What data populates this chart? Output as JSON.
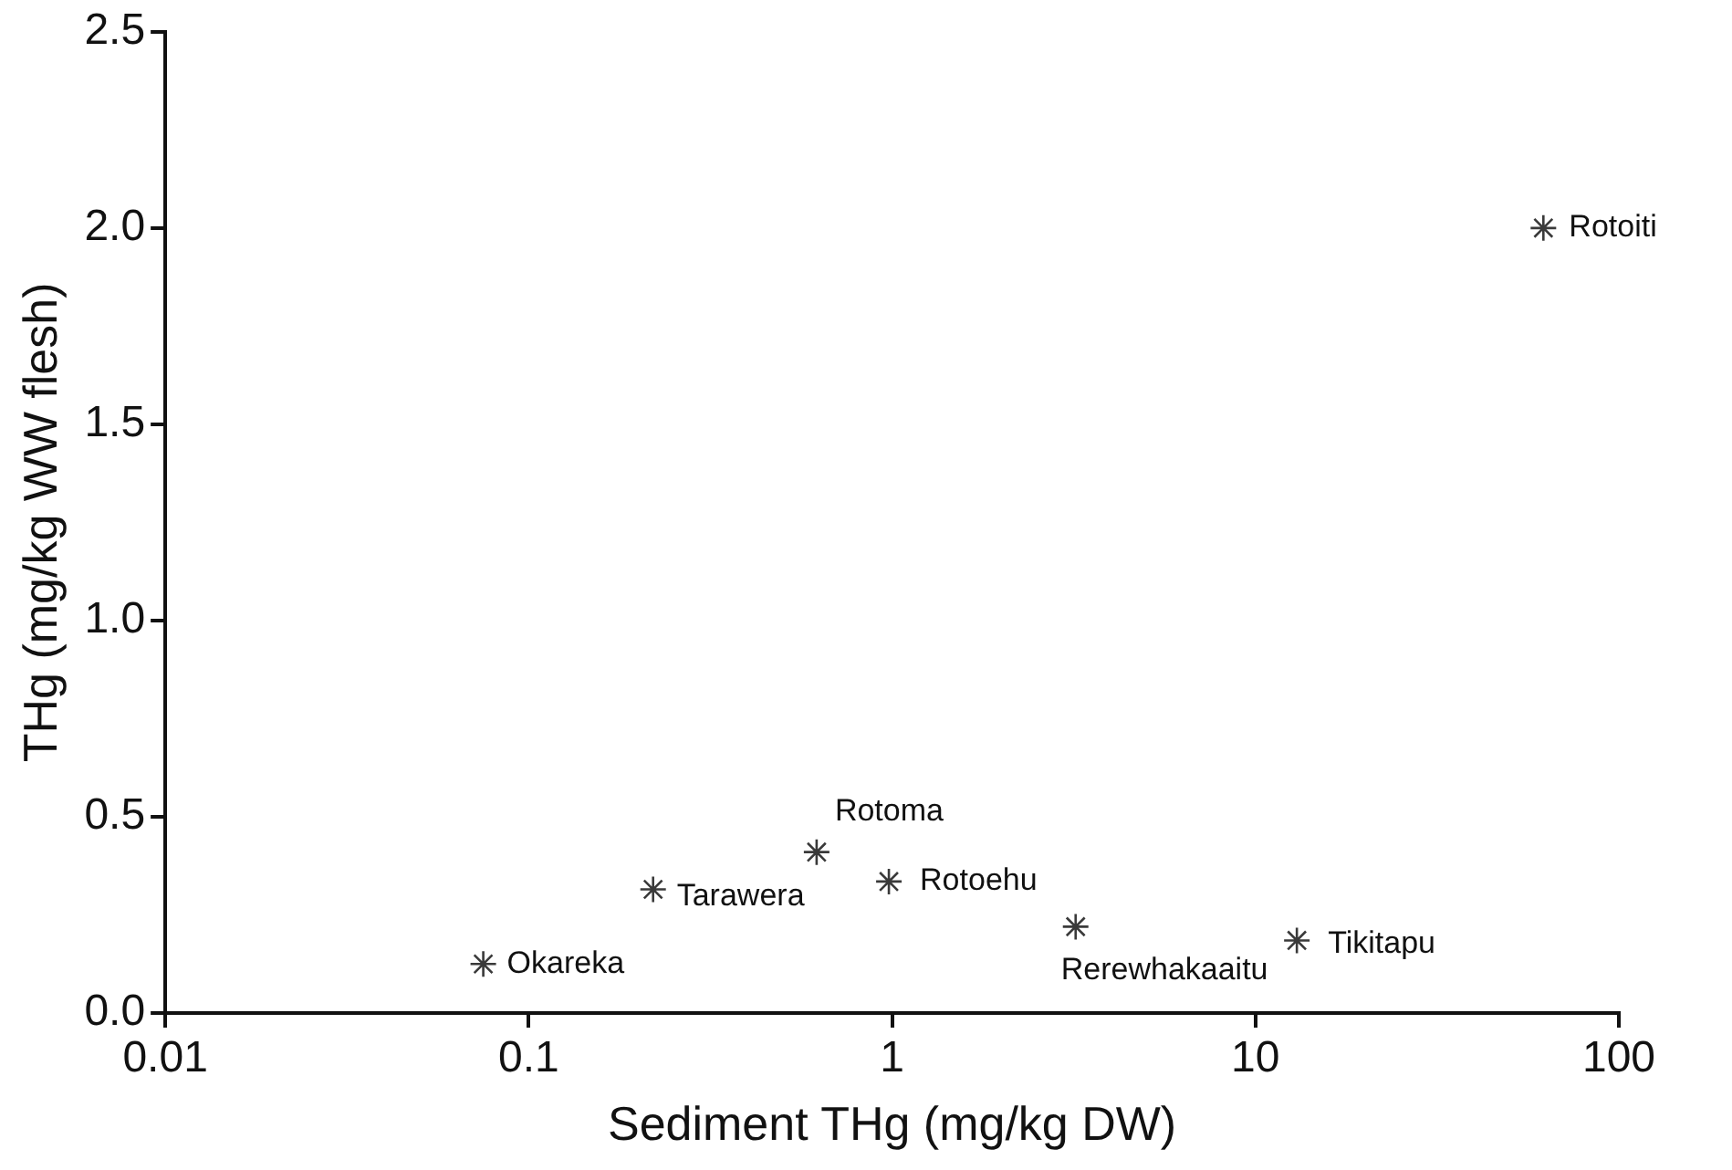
{
  "chart_data": {
    "type": "scatter",
    "xlabel": "Sediment THg (mg/kg DW)",
    "ylabel": "THg (mg/kg WW flesh)",
    "log": "x",
    "grid": false,
    "legend": false,
    "marker": "cross",
    "series": [
      {
        "color": "#3a3a3a",
        "x": [
          0.075,
          0.22,
          0.62,
          0.98,
          3.2,
          13,
          62
        ],
        "values": [
          0.125,
          0.315,
          0.41,
          0.335,
          0.22,
          0.185,
          2.0
        ]
      }
    ],
    "xlim": [
      0.01,
      100
    ],
    "xticks": [
      0.01,
      0.1,
      1,
      10,
      100
    ],
    "ylim": [
      0,
      2.5
    ],
    "yticks": [
      {
        "value": 0,
        "label": "0.0"
      },
      {
        "value": 0.5,
        "label": "0.5"
      },
      {
        "value": 1,
        "label": "1.0"
      },
      {
        "value": 1.5,
        "label": "1.5"
      },
      {
        "value": 2,
        "label": "2.0"
      },
      {
        "value": 2.5,
        "label": "2.5"
      }
    ],
    "annotations": [
      {
        "text": "Okareka",
        "x": 0.075,
        "y": 0.125
      },
      {
        "text": "Tarawera",
        "x": 0.22,
        "y": 0.315
      },
      {
        "text": "Rotoma",
        "x": 0.62,
        "y": 0.41
      },
      {
        "text": "Rotoehu",
        "x": 0.98,
        "y": 0.335
      },
      {
        "text": "Rerewhakaaitu",
        "x": 3.2,
        "y": 0.22
      },
      {
        "text": "Tikitapu",
        "x": 13,
        "y": 0.185
      },
      {
        "text": "Rotoiti",
        "x": 62,
        "y": 2.0
      }
    ]
  }
}
